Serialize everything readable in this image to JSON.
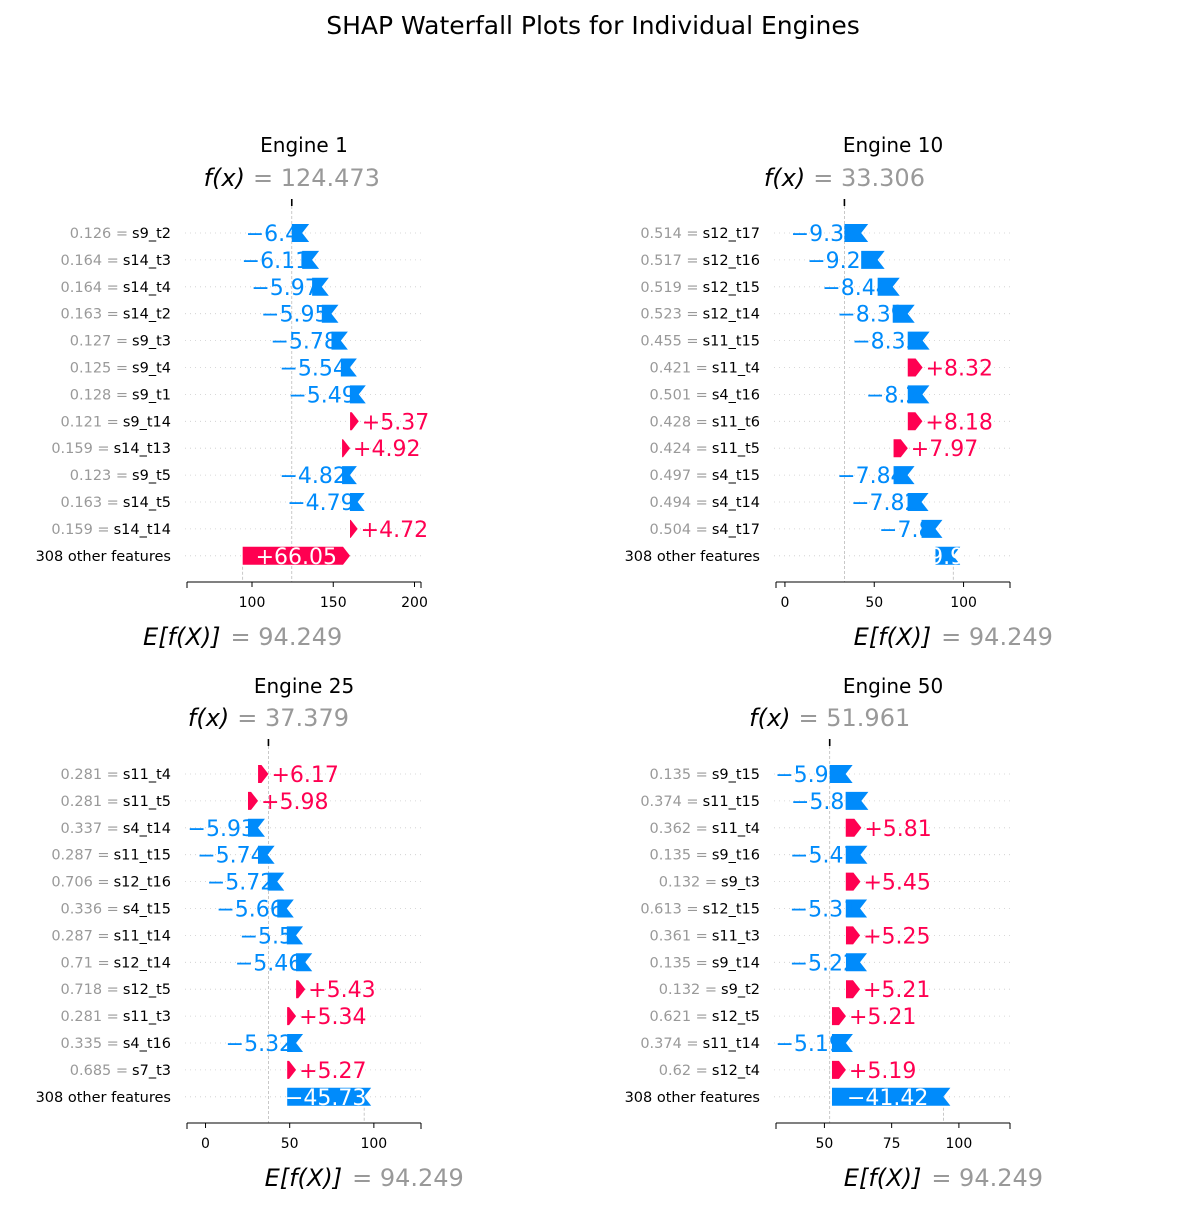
{
  "colors": {
    "positive": "#ff0051",
    "negative": "#008bfb",
    "gray": "#999999",
    "axis": "#000000"
  },
  "chart_data": {
    "type": "waterfall",
    "title": "SHAP Waterfall Plots for Individual Engines",
    "subplots": [
      {
        "title": "Engine 1",
        "fx_label": "f(x)",
        "fx_value": "= 124.473",
        "fx": 124.473,
        "ex_label": "E[f(X)]",
        "ex_value": "= 94.249",
        "ex": 94.249,
        "xlim": [
          60,
          204
        ],
        "xticks": [
          100,
          150,
          200
        ],
        "rows": [
          {
            "value": "0.126 =",
            "feature": "s9_t2",
            "contribution": -6.4,
            "label": "−6.4"
          },
          {
            "value": "0.164 =",
            "feature": "s14_t3",
            "contribution": -6.11,
            "label": "−6.11"
          },
          {
            "value": "0.164 =",
            "feature": "s14_t4",
            "contribution": -5.97,
            "label": "−5.97"
          },
          {
            "value": "0.163 =",
            "feature": "s14_t2",
            "contribution": -5.95,
            "label": "−5.95"
          },
          {
            "value": "0.127 =",
            "feature": "s9_t3",
            "contribution": -5.78,
            "label": "−5.78"
          },
          {
            "value": "0.125 =",
            "feature": "s9_t4",
            "contribution": -5.54,
            "label": "−5.54"
          },
          {
            "value": "0.128 =",
            "feature": "s9_t1",
            "contribution": -5.49,
            "label": "−5.49"
          },
          {
            "value": "0.121 =",
            "feature": "s9_t14",
            "contribution": 5.37,
            "label": "+5.37"
          },
          {
            "value": "0.159 =",
            "feature": "s14_t13",
            "contribution": 4.92,
            "label": "+4.92"
          },
          {
            "value": "0.123 =",
            "feature": "s9_t5",
            "contribution": -4.82,
            "label": "−4.82"
          },
          {
            "value": "0.163 =",
            "feature": "s14_t5",
            "contribution": -4.79,
            "label": "−4.79"
          },
          {
            "value": "0.159 =",
            "feature": "s14_t14",
            "contribution": 4.72,
            "label": "+4.72"
          },
          {
            "value": "",
            "feature": "308 other features",
            "contribution": 66.05,
            "label": "+66.05"
          }
        ]
      },
      {
        "title": "Engine 10",
        "fx_label": "f(x)",
        "fx_value": "= 33.306",
        "fx": 33.306,
        "ex_label": "E[f(X)]",
        "ex_value": "= 94.249",
        "ex": 94.249,
        "xlim": [
          -5,
          126
        ],
        "xticks": [
          0,
          50,
          100
        ],
        "rows": [
          {
            "value": "0.514 =",
            "feature": "s12_t17",
            "contribution": -9.38,
            "label": "−9.38"
          },
          {
            "value": "0.517 =",
            "feature": "s12_t16",
            "contribution": -9.22,
            "label": "−9.22"
          },
          {
            "value": "0.519 =",
            "feature": "s12_t15",
            "contribution": -8.44,
            "label": "−8.44"
          },
          {
            "value": "0.523 =",
            "feature": "s12_t14",
            "contribution": -8.39,
            "label": "−8.39"
          },
          {
            "value": "0.455 =",
            "feature": "s11_t15",
            "contribution": -8.35,
            "label": "−8.35"
          },
          {
            "value": "0.421 =",
            "feature": "s11_t4",
            "contribution": 8.32,
            "label": "+8.32"
          },
          {
            "value": "0.501 =",
            "feature": "s4_t16",
            "contribution": -8.2,
            "label": "−8.2"
          },
          {
            "value": "0.428 =",
            "feature": "s11_t6",
            "contribution": 8.18,
            "label": "+8.18"
          },
          {
            "value": "0.424 =",
            "feature": "s11_t5",
            "contribution": 7.97,
            "label": "+7.97"
          },
          {
            "value": "0.497 =",
            "feature": "s4_t15",
            "contribution": -7.84,
            "label": "−7.84"
          },
          {
            "value": "0.494 =",
            "feature": "s4_t14",
            "contribution": -7.82,
            "label": "−7.82"
          },
          {
            "value": "0.504 =",
            "feature": "s4_t17",
            "contribution": -7.8,
            "label": "−7.8"
          },
          {
            "value": "",
            "feature": "308 other features",
            "contribution": -9.96,
            "label": "−9.96"
          }
        ]
      },
      {
        "title": "Engine 25",
        "fx_label": "f(x)",
        "fx_value": "= 37.379",
        "fx": 37.379,
        "ex_label": "E[f(X)]",
        "ex_value": "= 94.249",
        "ex": 94.249,
        "xlim": [
          -11,
          128
        ],
        "xticks": [
          0,
          50,
          100
        ],
        "rows": [
          {
            "value": "0.281 =",
            "feature": "s11_t4",
            "contribution": 6.17,
            "label": "+6.17"
          },
          {
            "value": "0.281 =",
            "feature": "s11_t5",
            "contribution": 5.98,
            "label": "+5.98"
          },
          {
            "value": "0.337 =",
            "feature": "s4_t14",
            "contribution": -5.93,
            "label": "−5.93"
          },
          {
            "value": "0.287 =",
            "feature": "s11_t15",
            "contribution": -5.74,
            "label": "−5.74"
          },
          {
            "value": "0.706 =",
            "feature": "s12_t16",
            "contribution": -5.72,
            "label": "−5.72"
          },
          {
            "value": "0.336 =",
            "feature": "s4_t15",
            "contribution": -5.66,
            "label": "−5.66"
          },
          {
            "value": "0.287 =",
            "feature": "s11_t14",
            "contribution": -5.5,
            "label": "−5.5"
          },
          {
            "value": "0.71 =",
            "feature": "s12_t14",
            "contribution": -5.46,
            "label": "−5.46"
          },
          {
            "value": "0.718 =",
            "feature": "s12_t5",
            "contribution": 5.43,
            "label": "+5.43"
          },
          {
            "value": "0.281 =",
            "feature": "s11_t3",
            "contribution": 5.34,
            "label": "+5.34"
          },
          {
            "value": "0.335 =",
            "feature": "s4_t16",
            "contribution": -5.32,
            "label": "−5.32"
          },
          {
            "value": "0.685 =",
            "feature": "s7_t3",
            "contribution": 5.27,
            "label": "+5.27"
          },
          {
            "value": "",
            "feature": "308 other features",
            "contribution": -45.73,
            "label": "−45.73"
          }
        ]
      },
      {
        "title": "Engine 50",
        "fx_label": "f(x)",
        "fx_value": "= 51.961",
        "fx": 51.961,
        "ex_label": "E[f(X)]",
        "ex_value": "= 94.249",
        "ex": 94.249,
        "xlim": [
          32,
          119
        ],
        "xticks": [
          50,
          75,
          100
        ],
        "rows": [
          {
            "value": "0.135 =",
            "feature": "s9_t15",
            "contribution": -5.93,
            "label": "−5.93"
          },
          {
            "value": "0.374 =",
            "feature": "s11_t15",
            "contribution": -5.85,
            "label": "−5.85"
          },
          {
            "value": "0.362 =",
            "feature": "s11_t4",
            "contribution": 5.81,
            "label": "+5.81"
          },
          {
            "value": "0.135 =",
            "feature": "s9_t16",
            "contribution": -5.47,
            "label": "−5.47"
          },
          {
            "value": "0.132 =",
            "feature": "s9_t3",
            "contribution": 5.45,
            "label": "+5.45"
          },
          {
            "value": "0.613 =",
            "feature": "s12_t15",
            "contribution": -5.31,
            "label": "−5.31"
          },
          {
            "value": "0.361 =",
            "feature": "s11_t3",
            "contribution": 5.25,
            "label": "+5.25"
          },
          {
            "value": "0.135 =",
            "feature": "s9_t14",
            "contribution": -5.22,
            "label": "−5.22"
          },
          {
            "value": "0.132 =",
            "feature": "s9_t2",
            "contribution": 5.21,
            "label": "+5.21"
          },
          {
            "value": "0.621 =",
            "feature": "s12_t5",
            "contribution": 5.21,
            "label": "+5.21"
          },
          {
            "value": "0.374 =",
            "feature": "s11_t14",
            "contribution": -5.19,
            "label": "−5.19"
          },
          {
            "value": "0.62 =",
            "feature": "s12_t4",
            "contribution": 5.19,
            "label": "+5.19"
          },
          {
            "value": "",
            "feature": "308 other features",
            "contribution": -41.42,
            "label": "−41.42"
          }
        ]
      }
    ]
  }
}
